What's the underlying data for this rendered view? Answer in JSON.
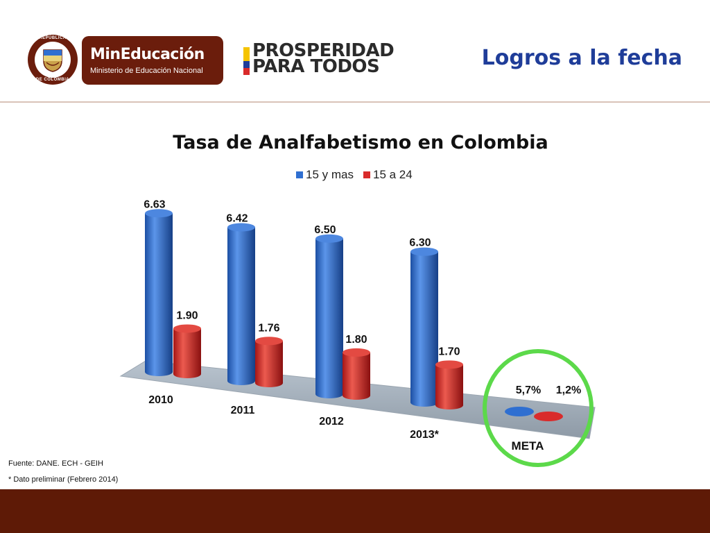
{
  "header": {
    "seal_text_top": "REPÚBLICA",
    "seal_text_bottom": "DE COLOMBIA",
    "ministry_name": "MinEducación",
    "ministry_subtitle": "Ministerio de Educación Nacional",
    "prosperidad_line1": "PROSPERIDAD",
    "prosperidad_line2": "PARA TODOS",
    "slide_title": "Logros a la fecha"
  },
  "colors": {
    "brand_brown": "#6b1d0c",
    "title_blue": "#1f3d99",
    "series_blue": "#2f6fd1",
    "series_red": "#d92b2b",
    "meta_ring": "#5cd94a",
    "bottom_band": "#5e1a06"
  },
  "chart_data": {
    "type": "bar",
    "title": "Tasa de Analfabetismo en Colombia",
    "categories": [
      "2010",
      "2011",
      "2012",
      "2013*"
    ],
    "series": [
      {
        "name": "15 y mas",
        "values": [
          6.63,
          6.42,
          6.5,
          6.3
        ],
        "labels": [
          "6.63",
          "6.42",
          "6.50",
          "6.30"
        ],
        "color": "#2f6fd1"
      },
      {
        "name": "15 a 24",
        "values": [
          1.9,
          1.76,
          1.8,
          1.7
        ],
        "labels": [
          "1.90",
          "1.76",
          "1.80",
          "1.70"
        ],
        "color": "#d92b2b"
      }
    ],
    "meta": {
      "label": "META",
      "values_text": [
        "5,7%",
        "1,2%"
      ],
      "values": [
        5.7,
        1.2
      ]
    },
    "style": "3d-cylinder",
    "legend_position": "top-center",
    "grid": false
  },
  "footer": {
    "source": "Fuente: DANE. ECH - GEIH",
    "note": "* Dato preliminar (Febrero 2014)"
  }
}
